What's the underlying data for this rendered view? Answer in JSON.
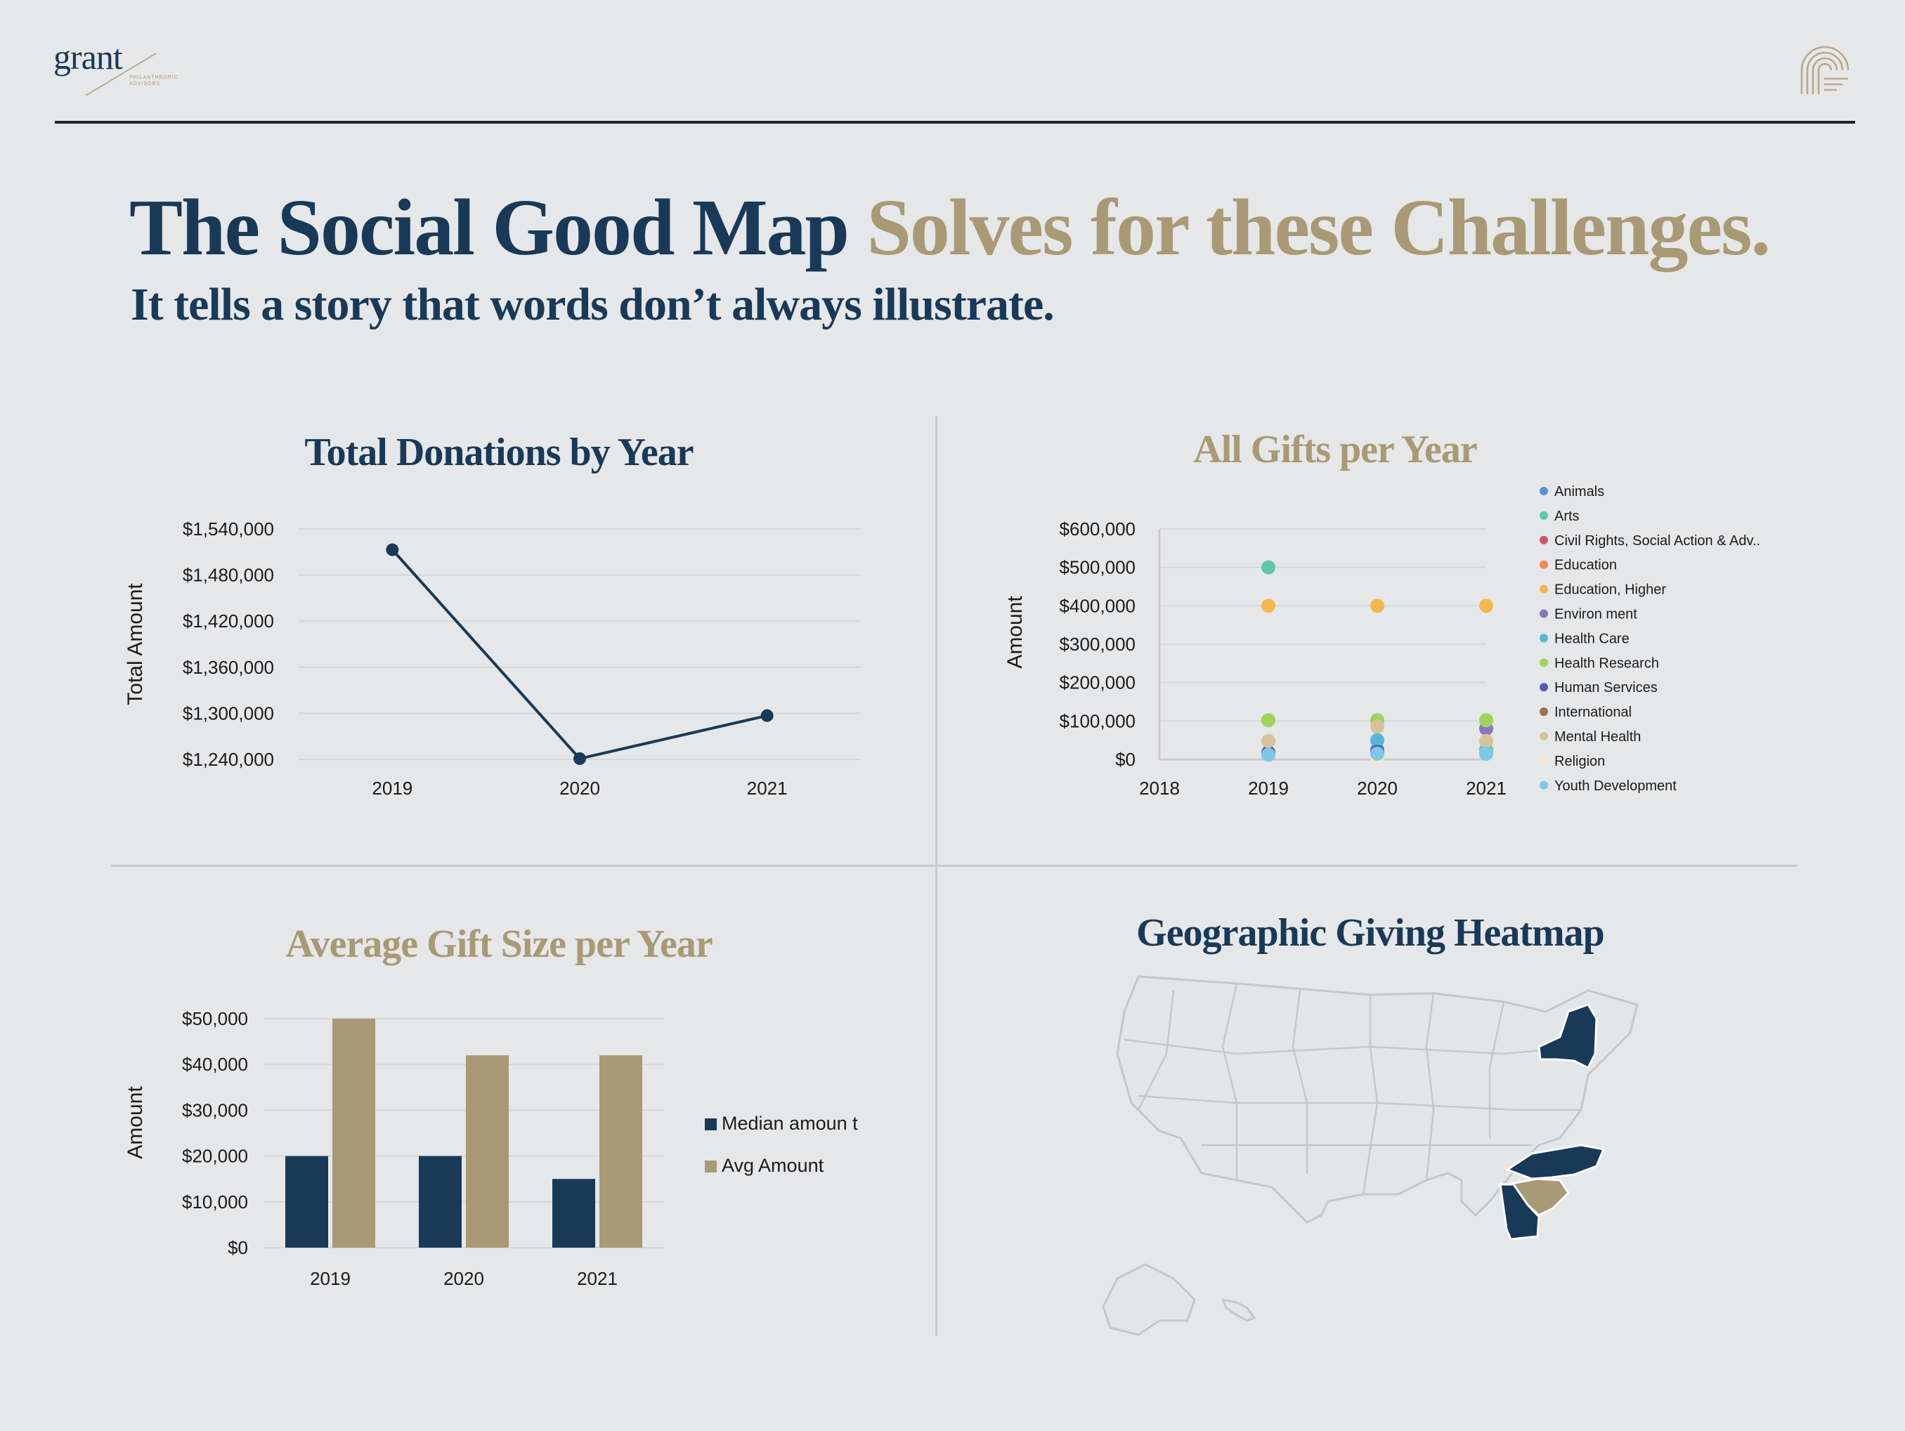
{
  "brand": {
    "logo_text": "grant",
    "logo_sub": "PHILANTHROPIC ADVISORS",
    "icon": "arches-icon",
    "colors": {
      "navy": "#183a58",
      "gold": "#a99a75",
      "background": "#e6e7e9"
    }
  },
  "header": {
    "title_main": "The Social Good Map",
    "title_accent": "Solves for these Challenges.",
    "subtitle": "It tells a story that words don’t always illustrate."
  },
  "panels": {
    "line_title": "Total Donations by Year",
    "scatter_title": "All Gifts per Year",
    "bar_title": "Average Gift Size per Year",
    "map_title": "Geographic Giving Heatmap"
  },
  "chart_data": [
    {
      "type": "line",
      "title": "Total Donations by Year",
      "ylabel": "Total Amount",
      "xlabel": "",
      "categories": [
        "2019",
        "2020",
        "2021"
      ],
      "values": [
        1513000,
        1241000,
        1297000
      ],
      "ylim": [
        1240000,
        1540000
      ],
      "yticks": [
        "$1,540,000",
        "$1,480,000",
        "$1,420,000",
        "$1,360,000",
        "$1,300,000",
        "$1,240,000"
      ],
      "color": "#183a58",
      "grid": true
    },
    {
      "type": "scatter",
      "title": "All Gifts per Year",
      "ylabel": "Amount",
      "xlabel": "",
      "xlim": [
        2018,
        2021
      ],
      "xticks": [
        "2018",
        "2019",
        "2020",
        "2021"
      ],
      "ylim": [
        0,
        600000
      ],
      "yticks": [
        "$600,000",
        "$500,000",
        "$400,000",
        "$300,000",
        "$200,000",
        "$100,000",
        "$0"
      ],
      "legend_position": "right",
      "series": [
        {
          "name": "Animals",
          "color": "#5b8fd0",
          "points": [
            [
              2019,
              15000
            ],
            [
              2020,
              25000
            ],
            [
              2021,
              15000
            ]
          ]
        },
        {
          "name": "Arts",
          "color": "#5ec9a8",
          "points": [
            [
              2019,
              500000
            ],
            [
              2021,
              25000
            ]
          ]
        },
        {
          "name": "Civil Rights, Social Action & Adv..",
          "color": "#d0566a",
          "points": []
        },
        {
          "name": "Education",
          "color": "#ef8a56",
          "points": []
        },
        {
          "name": "Education, Higher",
          "color": "#f1b84c",
          "points": [
            [
              2019,
              400000
            ],
            [
              2020,
              400000
            ],
            [
              2021,
              400000
            ]
          ]
        },
        {
          "name": "Environ ment",
          "color": "#8b74c2",
          "points": [
            [
              2021,
              80000
            ]
          ]
        },
        {
          "name": "Health Care",
          "color": "#55b6d9",
          "points": [
            [
              2020,
              50000
            ]
          ]
        },
        {
          "name": "Health Research",
          "color": "#9fd45c",
          "points": [
            [
              2019,
              102000
            ],
            [
              2020,
              102000
            ],
            [
              2021,
              102000
            ]
          ]
        },
        {
          "name": "Human Services",
          "color": "#4f5fb1",
          "points": [
            [
              2019,
              18000
            ],
            [
              2020,
              20000
            ]
          ]
        },
        {
          "name": "International",
          "color": "#9b7050",
          "points": []
        },
        {
          "name": "Mental Health",
          "color": "#d5c39a",
          "points": [
            [
              2019,
              48000
            ],
            [
              2020,
              85000
            ],
            [
              2021,
              48000
            ]
          ]
        },
        {
          "name": "Religion",
          "color": "#f3e8d2",
          "points": [
            [
              2020,
              5000
            ]
          ]
        },
        {
          "name": "Youth Development",
          "color": "#7ec7e6",
          "points": [
            [
              2019,
              12000
            ],
            [
              2020,
              15000
            ],
            [
              2021,
              15000
            ]
          ]
        }
      ]
    },
    {
      "type": "bar",
      "title": "Average Gift Size per Year",
      "ylabel": "Amount",
      "xlabel": "",
      "categories": [
        "2019",
        "2020",
        "2021"
      ],
      "ylim": [
        0,
        50000
      ],
      "yticks": [
        "$50,000",
        "$40,000",
        "$30,000",
        "$20,000",
        "$10,000",
        "$0"
      ],
      "legend_position": "right",
      "series": [
        {
          "name": "Median amoun t",
          "color": "#183a58",
          "values": [
            20000,
            20000,
            15000
          ]
        },
        {
          "name": "Avg Amount",
          "color": "#a99a75",
          "values": [
            50000,
            42000,
            42000
          ]
        }
      ]
    }
  ],
  "map": {
    "title": "Geographic Giving Heatmap",
    "base_color": "#e4e5e7",
    "border_color": "#c6c7c9",
    "highlight_colors": {
      "high": "#183a58",
      "mid": "#a99a75"
    },
    "highlighted_states": [
      {
        "state": "New York",
        "level": "high"
      },
      {
        "state": "North Carolina",
        "level": "high"
      },
      {
        "state": "Georgia",
        "level": "high"
      },
      {
        "state": "South Carolina",
        "level": "mid"
      }
    ]
  }
}
